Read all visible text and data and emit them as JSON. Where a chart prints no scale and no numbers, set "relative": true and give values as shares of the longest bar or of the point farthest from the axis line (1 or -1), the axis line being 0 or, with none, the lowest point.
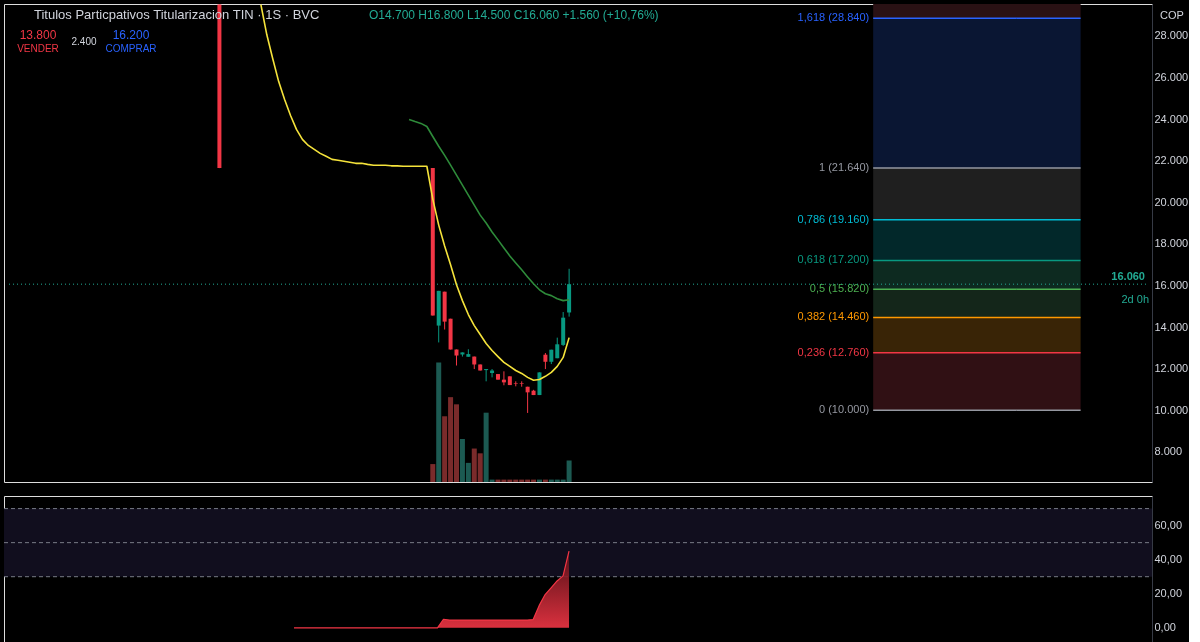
{
  "chart_data": [
    {
      "type": "candlestick",
      "title": "Titulos Particpativos Titularizacion TIN · 1S · BVC",
      "categories": [
        null,
        null,
        null,
        null,
        null,
        null,
        null,
        null,
        null,
        null,
        null,
        null,
        null,
        null,
        null,
        null,
        null,
        null,
        null,
        null,
        null,
        null,
        null,
        null,
        null,
        null,
        null,
        null,
        null,
        null,
        null,
        null,
        null,
        null,
        null,
        null,
        null,
        null,
        null,
        null,
        null,
        null,
        null,
        null,
        null,
        null,
        null,
        null,
        null,
        null,
        null,
        null,
        null,
        null,
        null,
        null,
        null,
        null,
        null,
        null,
        null,
        null,
        null,
        null,
        null,
        null,
        null,
        null,
        null,
        null,
        null,
        null,
        null,
        null,
        null,
        null,
        null,
        null,
        null,
        null,
        null,
        null,
        null,
        null,
        null,
        null,
        null,
        null,
        null,
        null,
        null,
        null,
        null,
        null,
        null,
        null,
        null,
        null,
        null,
        null,
        null,
        null,
        null,
        null,
        null,
        null,
        null,
        null,
        null,
        null,
        null,
        null,
        null,
        null,
        null,
        null,
        null,
        null,
        null,
        null,
        null,
        null,
        null,
        null,
        null,
        null,
        null,
        null,
        null,
        null,
        null,
        null,
        null,
        null,
        null,
        null,
        null,
        null,
        null,
        null,
        null,
        null,
        null,
        null,
        null,
        null,
        null,
        null,
        null,
        null,
        null,
        null,
        null,
        null,
        null,
        null,
        null,
        null,
        null,
        null,
        null,
        null,
        null,
        null,
        null,
        null,
        null,
        null,
        null,
        null,
        null,
        null,
        null,
        null,
        null,
        null,
        null,
        null,
        null,
        null,
        null,
        null,
        null,
        null,
        null,
        null,
        null,
        null,
        null,
        null,
        null,
        null
      ],
      "ohlc": [
        null,
        null,
        null,
        null,
        null,
        null,
        null,
        null,
        null,
        null,
        null,
        null,
        null,
        null,
        null,
        null,
        null,
        null,
        null,
        null,
        null,
        null,
        null,
        null,
        null,
        null,
        null,
        null,
        null,
        null,
        null,
        null,
        null,
        null,
        null,
        [
          29500,
          29500,
          21640,
          21640
        ],
        null,
        null,
        null,
        null,
        null,
        null,
        null,
        null,
        null,
        null,
        null,
        null,
        null,
        null,
        null,
        null,
        null,
        null,
        null,
        null,
        null,
        null,
        null,
        null,
        null,
        null,
        null,
        null,
        null,
        null,
        null,
        null,
        null,
        null,
        null,
        [
          21640,
          21640,
          14550,
          14550
        ],
        [
          14070,
          15740,
          13260,
          15740
        ],
        [
          15700,
          15700,
          13880,
          14260
        ],
        [
          14400,
          14400,
          12920,
          12920
        ],
        [
          12920,
          12920,
          12150,
          12630
        ],
        [
          12680,
          12780,
          12580,
          12780
        ],
        [
          12570,
          12930,
          12570,
          12700
        ],
        [
          12580,
          12580,
          11980,
          12200
        ],
        [
          12200,
          12200,
          11910,
          11910
        ],
        [
          11930,
          11980,
          11390,
          11980
        ],
        [
          11790,
          11980,
          11580,
          11910
        ],
        [
          11740,
          11740,
          11470,
          11470
        ],
        [
          11470,
          11870,
          11200,
          11340
        ],
        [
          11630,
          11630,
          11210,
          11210
        ],
        [
          11290,
          11390,
          11150,
          11260
        ],
        [
          11290,
          11390,
          11130,
          11260
        ],
        [
          11130,
          11130,
          9870,
          10860
        ],
        [
          10940,
          10980,
          10730,
          10730
        ],
        [
          10730,
          11820,
          10730,
          11820
        ],
        [
          12670,
          12750,
          11980,
          12330
        ],
        [
          12330,
          12910,
          12220,
          12910
        ],
        [
          12500,
          13490,
          12500,
          13170
        ],
        [
          13140,
          14720,
          13090,
          14450
        ],
        [
          14700,
          16800,
          14500,
          16060
        ],
        null,
        null,
        null,
        null,
        null,
        null,
        null,
        null,
        null,
        null,
        null,
        null,
        null,
        null,
        null,
        null,
        null,
        null,
        null,
        null,
        null,
        null,
        null,
        null,
        null,
        null,
        null,
        null,
        null,
        null,
        null,
        null,
        null,
        null,
        null,
        null,
        null,
        null,
        null,
        null,
        null,
        null,
        null,
        null,
        null,
        null,
        null,
        null,
        null,
        null,
        null,
        null,
        null,
        null,
        null,
        null,
        null,
        null,
        null,
        null,
        null,
        null,
        null,
        null,
        null,
        null,
        null,
        null,
        null,
        null,
        null,
        null,
        null,
        null,
        null,
        null,
        null,
        null,
        null,
        null,
        null,
        null,
        null,
        null,
        null,
        null,
        null,
        null,
        null,
        null,
        null,
        null,
        null,
        null,
        null,
        null,
        null
      ],
      "colors": [
        null,
        null,
        null,
        null,
        null,
        null,
        null,
        null,
        null,
        null,
        null,
        null,
        null,
        null,
        null,
        null,
        null,
        null,
        null,
        null,
        null,
        null,
        null,
        null,
        null,
        null,
        null,
        null,
        null,
        null,
        null,
        null,
        null,
        null,
        null,
        "#f23645",
        null,
        null,
        null,
        null,
        null,
        null,
        null,
        null,
        null,
        null,
        null,
        null,
        null,
        null,
        null,
        null,
        null,
        null,
        null,
        null,
        null,
        null,
        null,
        null,
        null,
        null,
        null,
        null,
        null,
        null,
        null,
        null,
        null,
        null,
        null,
        "#f23645",
        "#089981",
        "#f23645",
        "#f23645",
        "#f23645",
        "#089981",
        "#089981",
        "#f23645",
        "#f23645",
        "#089981",
        "#089981",
        "#f23645",
        "#f23645",
        "#f23645",
        "#f23645",
        "#f23645",
        "#f23645",
        "#f23645",
        "#089981",
        "#f23645",
        "#089981",
        "#089981",
        "#089981",
        "#089981",
        null,
        null,
        null,
        null,
        null,
        null,
        null,
        null,
        null,
        null,
        null,
        null,
        null,
        null,
        null,
        null,
        null,
        null,
        null,
        null,
        null,
        null,
        null,
        null,
        null,
        null,
        null,
        null,
        null,
        null,
        null,
        null,
        null,
        null,
        null,
        null,
        null,
        null,
        null,
        null,
        null,
        null,
        null,
        null,
        null,
        null,
        null,
        null,
        null,
        null,
        null,
        null,
        null,
        null,
        null,
        null,
        null,
        null,
        null,
        null,
        null,
        null,
        null,
        null,
        null,
        null,
        null,
        null,
        null,
        null,
        null,
        null,
        null,
        null,
        null,
        null,
        null,
        null,
        null,
        null,
        null,
        null,
        null,
        null,
        null,
        null,
        null,
        null,
        null,
        null,
        null,
        null,
        null,
        null,
        null,
        null,
        null
      ],
      "series": [
        {
          "type": "line",
          "color": "#f5e33b",
          "values": [
            null,
            null,
            null,
            null,
            null,
            null,
            null,
            null,
            null,
            null,
            null,
            null,
            null,
            null,
            null,
            null,
            null,
            null,
            null,
            null,
            null,
            null,
            null,
            null,
            null,
            null,
            null,
            null,
            null,
            null,
            null,
            null,
            null,
            null,
            null,
            null,
            null,
            null,
            null,
            null,
            null,
            null,
            29500,
            28050,
            26900,
            25800,
            24940,
            24170,
            23500,
            23020,
            22730,
            22540,
            22350,
            22210,
            22060,
            22020,
            21970,
            21920,
            21870,
            21870,
            21820,
            21780,
            21780,
            21780,
            21750,
            21750,
            21730,
            21730,
            21730,
            21730,
            21730,
            20150,
            18900,
            17900,
            16990,
            16030,
            15270,
            14600,
            14070,
            13640,
            13210,
            12870,
            12580,
            12300,
            12110,
            11910,
            11770,
            11580,
            11440,
            11480,
            11630,
            11820,
            12110,
            12540,
            13490,
            null,
            null,
            null,
            null,
            null,
            null,
            null,
            null,
            null,
            null,
            null,
            null,
            null,
            null,
            null,
            null,
            null,
            null,
            null,
            null,
            null,
            null,
            null,
            null,
            null,
            null,
            null,
            null,
            null,
            null,
            null,
            null,
            null,
            null,
            null,
            null,
            null,
            null,
            null,
            null,
            null,
            null,
            null,
            null,
            null,
            null,
            null,
            null,
            null,
            null,
            null,
            null,
            null,
            null,
            null,
            null,
            null,
            null,
            null,
            null,
            null,
            null,
            null,
            null,
            null,
            null,
            null,
            null,
            null,
            null,
            null,
            null,
            null,
            null,
            null,
            null,
            null,
            null,
            null,
            null,
            null,
            null,
            null,
            null,
            null,
            null,
            null,
            null,
            null,
            null,
            null,
            null,
            null,
            null,
            null,
            null,
            null
          ]
        },
        {
          "type": "line",
          "color": "#2e8b3a",
          "values": [
            null,
            null,
            null,
            null,
            null,
            null,
            null,
            null,
            null,
            null,
            null,
            null,
            null,
            null,
            null,
            null,
            null,
            null,
            null,
            null,
            null,
            null,
            null,
            null,
            null,
            null,
            null,
            null,
            null,
            null,
            null,
            null,
            null,
            null,
            null,
            null,
            null,
            null,
            null,
            null,
            null,
            null,
            null,
            null,
            null,
            null,
            null,
            null,
            null,
            null,
            null,
            null,
            null,
            null,
            null,
            null,
            null,
            null,
            null,
            null,
            null,
            null,
            null,
            null,
            null,
            null,
            null,
            23980,
            23880,
            23790,
            23640,
            23160,
            22690,
            22250,
            21780,
            21300,
            20820,
            20340,
            19860,
            19380,
            19000,
            18570,
            18190,
            17800,
            17420,
            17080,
            16750,
            16410,
            16080,
            15790,
            15600,
            15510,
            15360,
            15270,
            15310,
            null,
            null,
            null,
            null,
            null,
            null,
            null,
            null,
            null,
            null,
            null,
            null,
            null,
            null,
            null,
            null,
            null,
            null,
            null,
            null,
            null,
            null,
            null,
            null,
            null,
            null,
            null,
            null,
            null,
            null,
            null,
            null,
            null,
            null,
            null,
            null,
            null,
            null,
            null,
            null,
            null,
            null,
            null,
            null,
            null,
            null,
            null,
            null,
            null,
            null,
            null,
            null,
            null,
            null,
            null,
            null,
            null,
            null,
            null,
            null,
            null,
            null,
            null,
            null,
            null,
            null,
            null,
            null,
            null,
            null,
            null,
            null,
            null,
            null,
            null,
            null,
            null,
            null,
            null,
            null,
            null,
            null,
            null,
            null,
            null,
            null,
            null,
            null,
            null,
            null,
            null,
            null,
            null,
            null,
            null,
            null,
            null
          ]
        }
      ],
      "ylim": [
        6550,
        29530
      ],
      "yticks": [
        {
          "value": 8000,
          "label": "8.000"
        },
        {
          "value": 10000,
          "label": "10.000"
        },
        {
          "value": 12000,
          "label": "12.000"
        },
        {
          "value": 14000,
          "label": "14.000"
        },
        {
          "value": 16000,
          "label": "16.000"
        },
        {
          "value": 18000,
          "label": "18.000"
        },
        {
          "value": 20000,
          "label": "20.000"
        },
        {
          "value": 22000,
          "label": "22.000"
        },
        {
          "value": 24000,
          "label": "24.000"
        },
        {
          "value": 26000,
          "label": "26.000"
        },
        {
          "value": 28000,
          "label": "28.000"
        }
      ],
      "ref_lines": [
        {
          "axis": "y",
          "value": 28840,
          "label": "1,618 (28.840)",
          "color": "#2962ff"
        },
        {
          "axis": "y",
          "value": 21640,
          "label": "1 (21.640)",
          "color": "#9598a1"
        },
        {
          "axis": "y",
          "value": 19160,
          "label": "0,786 (19.160)",
          "color": "#00bcd4"
        },
        {
          "axis": "y",
          "value": 17200,
          "label": "0,618 (17.200)",
          "color": "#089981"
        },
        {
          "axis": "y",
          "value": 15820,
          "label": "0,5 (15.820)",
          "color": "#4caf50"
        },
        {
          "axis": "y",
          "value": 14460,
          "label": "0,382 (14.460)",
          "color": "#ff9800"
        },
        {
          "axis": "y",
          "value": 12760,
          "label": "0,236 (12.760)",
          "color": "#f23645"
        },
        {
          "axis": "y",
          "value": 10000,
          "label": "0 (10.000)",
          "color": "#9598a1"
        },
        {
          "axis": "y",
          "value": 16060,
          "label": "16.060",
          "color": "#22ab94",
          "line_style": "dotted"
        }
      ],
      "bands": [
        {
          "axis": "y",
          "from": 28840,
          "to": 29530,
          "color": "#2a1114"
        },
        {
          "axis": "y",
          "from": 21640,
          "to": 28840,
          "color": "#0a1633"
        },
        {
          "axis": "y",
          "from": 19160,
          "to": 21640,
          "color": "#1f1f1f"
        },
        {
          "axis": "y",
          "from": 17200,
          "to": 19160,
          "color": "#02282a"
        },
        {
          "axis": "y",
          "from": 15820,
          "to": 17200,
          "color": "#0d2a20"
        },
        {
          "axis": "y",
          "from": 14460,
          "to": 15820,
          "color": "#14261a"
        },
        {
          "axis": "y",
          "from": 12760,
          "to": 14460,
          "color": "#392406"
        },
        {
          "axis": "y",
          "from": 10000,
          "to": 12760,
          "color": "#301014"
        }
      ],
      "annotations": [
        "O14.700 H16.800 L14.500 C16.060 +1.560 (+10,76%)",
        "13.800",
        "VENDER",
        "2.400",
        "16.200",
        "COMPRAR",
        "2d 0h",
        "COP"
      ],
      "grid": false
    },
    {
      "type": "bar",
      "relative": true,
      "categories": [
        null,
        null,
        null,
        null,
        null,
        null,
        null,
        null,
        null,
        null,
        null,
        null,
        null,
        null,
        null,
        null,
        null,
        null,
        null,
        null,
        null,
        null,
        null,
        null,
        null,
        null,
        null,
        null,
        null,
        null,
        null,
        null,
        null,
        null,
        null,
        null,
        null,
        null,
        null,
        null,
        null,
        null,
        null,
        null,
        null,
        null,
        null,
        null,
        null,
        null,
        null,
        null,
        null,
        null,
        null,
        null,
        null,
        null,
        null,
        null,
        null,
        null,
        null,
        null,
        null,
        null,
        null,
        null,
        null,
        null,
        null,
        null,
        null,
        null,
        null,
        null,
        null,
        null,
        null,
        null,
        null,
        null,
        null,
        null,
        null,
        null,
        null,
        null,
        null,
        null,
        null,
        null,
        null,
        null,
        null,
        null,
        null,
        null,
        null,
        null,
        null,
        null,
        null,
        null,
        null,
        null,
        null,
        null,
        null,
        null,
        null,
        null,
        null,
        null,
        null,
        null,
        null,
        null,
        null,
        null,
        null,
        null,
        null,
        null,
        null,
        null,
        null,
        null,
        null,
        null,
        null,
        null,
        null,
        null,
        null,
        null,
        null,
        null,
        null,
        null,
        null,
        null,
        null,
        null,
        null,
        null,
        null,
        null,
        null,
        null,
        null,
        null,
        null,
        null,
        null,
        null,
        null,
        null,
        null,
        null,
        null,
        null,
        null,
        null,
        null,
        null,
        null,
        null,
        null,
        null,
        null,
        null,
        null,
        null,
        null,
        null,
        null,
        null,
        null,
        null,
        null,
        null,
        null,
        null,
        null,
        null,
        null,
        null,
        null,
        null,
        null,
        null
      ],
      "values": [
        null,
        null,
        null,
        null,
        null,
        null,
        null,
        null,
        null,
        null,
        null,
        null,
        null,
        null,
        null,
        null,
        null,
        null,
        null,
        null,
        null,
        null,
        null,
        null,
        null,
        null,
        null,
        null,
        null,
        null,
        null,
        null,
        null,
        null,
        null,
        null,
        null,
        null,
        null,
        null,
        null,
        null,
        null,
        null,
        null,
        null,
        null,
        null,
        null,
        null,
        null,
        null,
        null,
        null,
        null,
        null,
        null,
        null,
        null,
        null,
        null,
        null,
        null,
        null,
        null,
        null,
        null,
        null,
        null,
        null,
        null,
        0.15,
        1,
        0.55,
        0.71,
        0.65,
        0.36,
        0.16,
        0.28,
        0.24,
        0.58,
        0.02,
        0.02,
        0.02,
        0.02,
        0.02,
        0.02,
        0.02,
        0.02,
        0.02,
        0.02,
        0.02,
        0.02,
        0.02,
        0.18,
        null,
        null,
        null,
        null,
        null,
        null,
        null,
        null,
        null,
        null,
        null,
        null,
        null,
        null,
        null,
        null,
        null,
        null,
        null,
        null,
        null,
        null,
        null,
        null,
        null,
        null,
        null,
        null,
        null,
        null,
        null,
        null,
        null,
        null,
        null,
        null,
        null,
        null,
        null,
        null,
        null,
        null,
        null,
        null,
        null,
        null,
        null,
        null,
        null,
        null,
        null,
        null,
        null,
        null,
        null,
        null,
        null,
        null,
        null,
        null,
        null,
        null,
        null,
        null,
        null,
        null,
        null,
        null,
        null,
        null,
        null,
        null,
        null,
        null,
        null,
        null,
        null,
        null,
        null,
        null,
        null,
        null,
        null,
        null,
        null,
        null,
        null,
        null,
        null,
        null,
        null,
        null,
        null,
        null,
        null,
        null,
        null
      ],
      "colors": [
        null,
        null,
        null,
        null,
        null,
        null,
        null,
        null,
        null,
        null,
        null,
        null,
        null,
        null,
        null,
        null,
        null,
        null,
        null,
        null,
        null,
        null,
        null,
        null,
        null,
        null,
        null,
        null,
        null,
        null,
        null,
        null,
        null,
        null,
        null,
        null,
        null,
        null,
        null,
        null,
        null,
        null,
        null,
        null,
        null,
        null,
        null,
        null,
        null,
        null,
        null,
        null,
        null,
        null,
        null,
        null,
        null,
        null,
        null,
        null,
        null,
        null,
        null,
        null,
        null,
        null,
        null,
        null,
        null,
        null,
        null,
        "#7a2b2b",
        "#1c5a52",
        "#7a2b2b",
        "#7a2b2b",
        "#7a2b2b",
        "#1c5a52",
        "#1c5a52",
        "#7a2b2b",
        "#7a2b2b",
        "#1c5a52",
        "#1c5a52",
        "#7a2b2b",
        "#7a2b2b",
        "#7a2b2b",
        "#7a2b2b",
        "#7a2b2b",
        "#7a2b2b",
        "#7a2b2b",
        "#1c5a52",
        "#7a2b2b",
        "#1c5a52",
        "#1c5a52",
        "#1c5a52",
        "#1c5a52",
        null,
        null,
        null,
        null,
        null,
        null,
        null,
        null,
        null,
        null,
        null,
        null,
        null,
        null,
        null,
        null,
        null,
        null,
        null,
        null,
        null,
        null,
        null,
        null,
        null,
        null,
        null,
        null,
        null,
        null,
        null,
        null,
        null,
        null,
        null,
        null,
        null,
        null,
        null,
        null,
        null,
        null,
        null,
        null,
        null,
        null,
        null,
        null,
        null,
        null,
        null,
        null,
        null,
        null,
        null,
        null,
        null,
        null,
        null,
        null,
        null,
        null,
        null,
        null,
        null,
        null,
        null,
        null,
        null,
        null,
        null,
        null,
        null,
        null,
        null,
        null,
        null,
        null,
        null,
        null,
        null,
        null,
        null,
        null,
        null,
        null,
        null,
        null,
        null,
        null,
        null,
        null,
        null,
        null,
        null,
        null,
        null
      ]
    },
    {
      "type": "area",
      "categories": [
        null,
        null,
        null,
        null,
        null,
        null,
        null,
        null,
        null,
        null,
        null,
        null,
        null,
        null,
        null,
        null,
        null,
        null,
        null,
        null,
        null,
        null,
        null,
        null,
        null,
        null,
        null,
        null,
        null,
        null,
        null,
        null,
        null,
        null,
        null,
        null,
        null,
        null,
        null,
        null,
        null,
        null,
        null,
        null,
        null,
        null,
        null,
        null,
        null,
        null,
        null,
        null,
        null,
        null,
        null,
        null,
        null,
        null,
        null,
        null,
        null,
        null,
        null,
        null,
        null,
        null,
        null,
        null,
        null,
        null,
        null,
        null,
        null,
        null,
        null,
        null,
        null,
        null,
        null,
        null,
        null,
        null,
        null,
        null,
        null,
        null,
        null,
        null,
        null,
        null,
        null,
        null,
        null,
        null,
        null,
        null,
        null,
        null,
        null,
        null,
        null,
        null,
        null,
        null,
        null,
        null,
        null,
        null,
        null,
        null,
        null,
        null,
        null,
        null,
        null,
        null,
        null,
        null,
        null,
        null,
        null,
        null,
        null,
        null,
        null,
        null,
        null,
        null,
        null,
        null,
        null,
        null,
        null,
        null,
        null,
        null,
        null,
        null,
        null,
        null,
        null,
        null,
        null,
        null,
        null,
        null,
        null,
        null,
        null,
        null,
        null,
        null,
        null,
        null,
        null,
        null,
        null,
        null,
        null,
        null,
        null,
        null,
        null,
        null,
        null,
        null,
        null,
        null,
        null,
        null,
        null,
        null,
        null,
        null,
        null,
        null,
        null,
        null,
        null,
        null,
        null,
        null,
        null,
        null,
        null,
        null,
        null,
        null,
        null,
        null,
        null,
        null
      ],
      "series": [
        {
          "color": "#f23645",
          "values": [
            null,
            null,
            null,
            null,
            null,
            null,
            null,
            null,
            null,
            null,
            null,
            null,
            null,
            null,
            null,
            null,
            null,
            null,
            null,
            null,
            null,
            null,
            null,
            null,
            null,
            null,
            null,
            null,
            null,
            null,
            null,
            null,
            null,
            null,
            null,
            null,
            null,
            null,
            null,
            null,
            null,
            null,
            null,
            null,
            null,
            null,
            null,
            null,
            0,
            0,
            0,
            0,
            0,
            0,
            0,
            0,
            0,
            0,
            0,
            0,
            0,
            0,
            0,
            0,
            0,
            0,
            0,
            0,
            0,
            0,
            0,
            0,
            0,
            5.0,
            4.5,
            4.5,
            4.5,
            4.5,
            4.5,
            4.5,
            4.5,
            4.5,
            4.5,
            4.5,
            4.5,
            4.5,
            4.5,
            4.5,
            4.8,
            13,
            19.5,
            23.5,
            27.5,
            30.5,
            45,
            null,
            null,
            null,
            null,
            null,
            null,
            null,
            null,
            null,
            null,
            null,
            null,
            null,
            null,
            null,
            null,
            null,
            null,
            null,
            null,
            null,
            null,
            null,
            null,
            null,
            null,
            null,
            null,
            null,
            null,
            null,
            null,
            null,
            null,
            null,
            null,
            null,
            null,
            null,
            null,
            null,
            null,
            null,
            null,
            null,
            null,
            null,
            null,
            null,
            null,
            null,
            null,
            null,
            null,
            null,
            null,
            null,
            null,
            null,
            null,
            null,
            null,
            null,
            null,
            null,
            null,
            null,
            null,
            null,
            null,
            null,
            null,
            null,
            null,
            null,
            null,
            null,
            null,
            null,
            null,
            null,
            null,
            null,
            null,
            null,
            null,
            null,
            null,
            null,
            null,
            null,
            null,
            null,
            null,
            null,
            null,
            null
          ]
        }
      ],
      "ylim": [
        -10.7,
        77.4
      ],
      "yticks": [
        {
          "value": 0,
          "label": "0,00"
        },
        {
          "value": 20,
          "label": "20,00"
        },
        {
          "value": 40,
          "label": "40,00"
        },
        {
          "value": 60,
          "label": "60,00"
        }
      ],
      "ref_lines": [
        {
          "axis": "y",
          "value": 70,
          "color": "#787b86",
          "line_style": "dashed"
        },
        {
          "axis": "y",
          "value": 50,
          "color": "#787b86",
          "line_style": "dashed"
        },
        {
          "axis": "y",
          "value": 30,
          "color": "#787b86",
          "line_style": "dashed"
        }
      ],
      "bands": [
        {
          "axis": "y",
          "from": 30,
          "to": 70,
          "color": "#110e1e"
        }
      ],
      "grid": false
    }
  ]
}
